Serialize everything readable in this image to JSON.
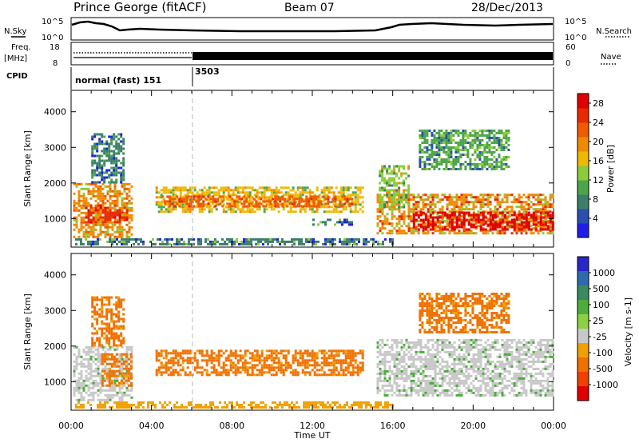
{
  "header": {
    "station": "Prince George (fitACF)",
    "beam": "Beam 07",
    "date": "28/Dec/2013"
  },
  "top_panels": {
    "nsky_label": "N.Sky",
    "nsky_ticks": [
      "10^5",
      "10^0"
    ],
    "nsearch_label": "N.Search",
    "nsearch_ticks": [
      "10^5",
      "10^0"
    ],
    "freq_label_1": "Freq.",
    "freq_label_2": "[MHz]",
    "freq_ticks": [
      "18",
      "8"
    ],
    "nave_label": "Nave",
    "nave_ticks": [
      "60",
      "0"
    ],
    "cpid_label": "CPID",
    "cpid_segments": [
      {
        "label": "normal (fast) 151",
        "start_hour": 0,
        "end_hour": 6
      },
      {
        "label": "3503",
        "start_hour": 6,
        "end_hour": 24
      }
    ]
  },
  "colors": {
    "power_scale": [
      "#1e1ee6",
      "#2a4fb0",
      "#3b7f6a",
      "#4ba54a",
      "#8ccc3a",
      "#f0b800",
      "#f08a00",
      "#f05a00",
      "#e82a00",
      "#e00000"
    ],
    "velocity_scale": [
      "#2828c8",
      "#2d6ab0",
      "#3a8a60",
      "#4cac3c",
      "#8ad040",
      "#c8c8c8",
      "#f0a000",
      "#f07000",
      "#f04000",
      "#e00000"
    ],
    "marker_line": "#bbbbbb"
  },
  "chart_data": [
    {
      "type": "heatmap",
      "panel": "power",
      "ylabel": "Slant Range [km]",
      "yticks": [
        "1000",
        "2000",
        "3000",
        "4000"
      ],
      "ylim": [
        200,
        4600
      ],
      "xlim": [
        0,
        24
      ],
      "colorbar_label": "Power [dB]",
      "colorbar_ticks": [
        "4",
        "8",
        "12",
        "16",
        "20",
        "24",
        "28"
      ],
      "colorbar_range": [
        0,
        30
      ],
      "regions": [
        {
          "t0": 0.1,
          "t1": 3.0,
          "r0": 500,
          "r1": 2000,
          "value": 18
        },
        {
          "t0": 0.7,
          "t1": 2.8,
          "r0": 900,
          "r1": 1400,
          "value": 26
        },
        {
          "t0": 1.0,
          "t1": 2.6,
          "r0": 2000,
          "r1": 3400,
          "value": 6
        },
        {
          "t0": 4.2,
          "t1": 14.5,
          "r0": 1200,
          "r1": 1900,
          "value": 16
        },
        {
          "t0": 4.5,
          "t1": 14.0,
          "r0": 1350,
          "r1": 1650,
          "value": 22
        },
        {
          "t0": 0.2,
          "t1": 16.0,
          "r0": 250,
          "r1": 450,
          "value": 8
        },
        {
          "t0": 15.2,
          "t1": 24.0,
          "r0": 600,
          "r1": 1700,
          "value": 20
        },
        {
          "t0": 17.0,
          "t1": 24.0,
          "r0": 700,
          "r1": 1200,
          "value": 28
        },
        {
          "t0": 15.3,
          "t1": 16.8,
          "r0": 1300,
          "r1": 2500,
          "value": 14
        },
        {
          "t0": 17.3,
          "t1": 21.8,
          "r0": 2400,
          "r1": 3500,
          "value": 10
        },
        {
          "t0": 12.0,
          "t1": 14.0,
          "r0": 800,
          "r1": 1000,
          "value": 8
        }
      ]
    },
    {
      "type": "heatmap",
      "panel": "velocity",
      "xlabel": "Time UT",
      "ylabel": "Slant Range [km]",
      "xticks": [
        "00:00",
        "04:00",
        "08:00",
        "12:00",
        "16:00",
        "20:00",
        "00:00"
      ],
      "xtick_hours": [
        0,
        4,
        8,
        12,
        16,
        20,
        24
      ],
      "yticks": [
        "1000",
        "2000",
        "3000",
        "4000"
      ],
      "ylim": [
        200,
        4600
      ],
      "xlim": [
        0,
        24
      ],
      "colorbar_label": "Velocity [m s-1]",
      "colorbar_ticks": [
        "1000",
        "500",
        "100",
        "25",
        "-25",
        "-100",
        "-500",
        "-1000"
      ],
      "regions": [
        {
          "t0": 0.1,
          "t1": 3.0,
          "r0": 500,
          "r1": 2000,
          "value": 25
        },
        {
          "t0": 1.5,
          "t1": 3.0,
          "r0": 900,
          "r1": 1800,
          "value": -100
        },
        {
          "t0": 1.0,
          "t1": 2.6,
          "r0": 2000,
          "r1": 3400,
          "value": -100
        },
        {
          "t0": 4.2,
          "t1": 14.5,
          "r0": 1200,
          "r1": 1900,
          "value": -100
        },
        {
          "t0": 0.2,
          "t1": 16.0,
          "r0": 250,
          "r1": 450,
          "value": -25
        },
        {
          "t0": 15.2,
          "t1": 24.0,
          "r0": 600,
          "r1": 2200,
          "value": 25
        },
        {
          "t0": 17.3,
          "t1": 21.8,
          "r0": 2400,
          "r1": 3500,
          "value": -100
        }
      ]
    }
  ],
  "footer": {
    "xlabel": "Time UT"
  }
}
